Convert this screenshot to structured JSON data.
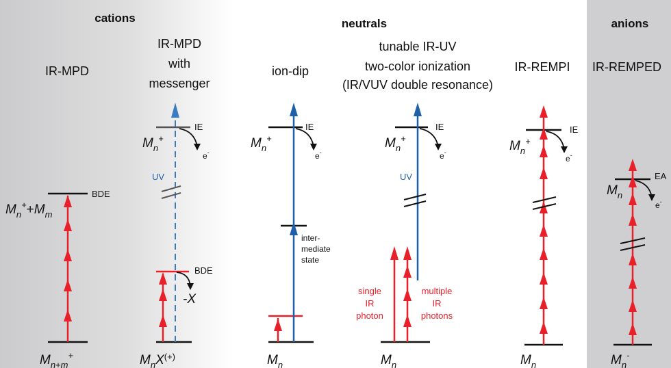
{
  "sections": {
    "cations": "cations",
    "neutrals": "neutrals",
    "anions": "anions"
  },
  "columns": {
    "irmpd": [
      "IR-MPD"
    ],
    "irmpd_messenger": [
      "IR-MPD",
      "with",
      "messenger"
    ],
    "iondip": [
      "ion-dip"
    ],
    "tunable": [
      "tunable IR-UV",
      "two-color ionization",
      "(IR/VUV double resonance)"
    ],
    "irempi": [
      "IR-REMPI"
    ],
    "irempd": [
      "IR-REMPED"
    ]
  },
  "levels": {
    "ie": "IE",
    "bde": "BDE",
    "ea": "EA",
    "electron": "e",
    "uv": "UV",
    "loss": "-X",
    "intermediate": [
      "inter-",
      "mediate",
      "state"
    ],
    "single_ir": [
      "single",
      "IR",
      "photon"
    ],
    "multiple_ir": [
      "multiple",
      "IR",
      "photons"
    ]
  },
  "species": {
    "mnm": "M",
    "mn": "M",
    "n": "n",
    "nm": "n+m",
    "m": "m",
    "plus": "+",
    "minus": "-",
    "x": "X",
    "xplus": "(+)"
  },
  "colors": {
    "ir": "#e8202a",
    "uv": "#1f5fa8",
    "shade": "#cfcfd1"
  }
}
